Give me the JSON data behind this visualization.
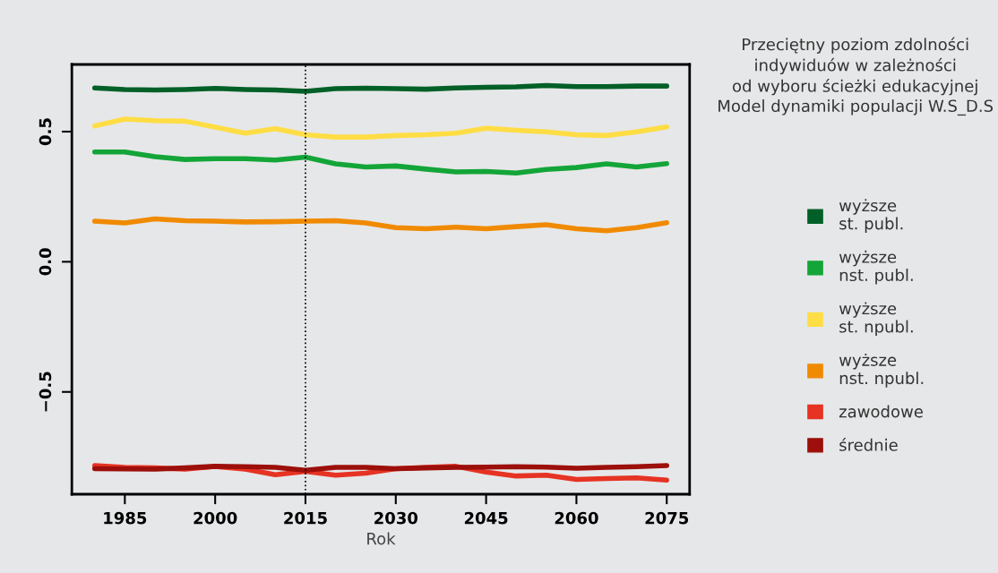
{
  "chart_data": {
    "type": "line",
    "title": "Przeciętny poziom zdolności\nindywiduów w zależności\nod wyboru ścieżki edukacyjnej\nModel dynamiki populacji W.S_D.S",
    "xlabel": "Rok",
    "x": [
      1980,
      1985,
      1990,
      1995,
      2000,
      2005,
      2010,
      2015,
      2020,
      2025,
      2030,
      2035,
      2040,
      2045,
      2050,
      2055,
      2060,
      2065,
      2070,
      2075
    ],
    "series": [
      {
        "name": "wyższe\nst. publ.",
        "color": "#006027",
        "values": [
          0.668,
          0.662,
          0.66,
          0.662,
          0.666,
          0.662,
          0.66,
          0.655,
          0.665,
          0.667,
          0.665,
          0.663,
          0.668,
          0.67,
          0.672,
          0.677,
          0.673,
          0.673,
          0.675,
          0.675
        ]
      },
      {
        "name": "wyższe\nnst. publ.",
        "color": "#13a538",
        "values": [
          0.422,
          0.422,
          0.404,
          0.393,
          0.396,
          0.396,
          0.391,
          0.402,
          0.376,
          0.364,
          0.368,
          0.356,
          0.345,
          0.347,
          0.341,
          0.355,
          0.362,
          0.376,
          0.364,
          0.377
        ]
      },
      {
        "name": "wyższe\nst. npubl.",
        "color": "#ffdd44",
        "values": [
          0.522,
          0.548,
          0.542,
          0.54,
          0.517,
          0.494,
          0.511,
          0.488,
          0.479,
          0.479,
          0.485,
          0.488,
          0.494,
          0.513,
          0.505,
          0.499,
          0.488,
          0.485,
          0.499,
          0.518
        ]
      },
      {
        "name": "wyższe\nnst. npubl.",
        "color": "#f08a00",
        "values": [
          0.156,
          0.149,
          0.165,
          0.158,
          0.156,
          0.153,
          0.154,
          0.156,
          0.158,
          0.149,
          0.131,
          0.127,
          0.133,
          0.127,
          0.135,
          0.142,
          0.127,
          0.119,
          0.131,
          0.15
        ]
      },
      {
        "name": "zawodowe",
        "color": "#e63323",
        "values": [
          -0.783,
          -0.79,
          -0.792,
          -0.797,
          -0.786,
          -0.797,
          -0.818,
          -0.805,
          -0.82,
          -0.812,
          -0.795,
          -0.79,
          -0.786,
          -0.808,
          -0.823,
          -0.82,
          -0.836,
          -0.833,
          -0.83,
          -0.839
        ]
      },
      {
        "name": "średnie",
        "color": "#9c0f0a",
        "values": [
          -0.795,
          -0.796,
          -0.797,
          -0.792,
          -0.786,
          -0.787,
          -0.79,
          -0.801,
          -0.79,
          -0.79,
          -0.795,
          -0.792,
          -0.79,
          -0.789,
          -0.787,
          -0.789,
          -0.793,
          -0.79,
          -0.787,
          -0.783
        ]
      }
    ],
    "xlim": [
      1976.2,
      2078.8
    ],
    "xticks": [
      1985,
      2000,
      2015,
      2030,
      2045,
      2060,
      2075
    ],
    "ylim": [
      -0.893,
      0.758
    ],
    "yticks": [
      {
        "value": -0.5,
        "label": "−0.5"
      },
      {
        "value": 0,
        "label": "0.0"
      },
      {
        "value": 0.5,
        "label": "0.5"
      }
    ],
    "ref_lines": [
      {
        "axis": "x",
        "value": 2015,
        "line_style": "dotted",
        "color": "#000000"
      }
    ],
    "legend": "right",
    "grid": false,
    "marker": "none",
    "line_style": "solid"
  }
}
